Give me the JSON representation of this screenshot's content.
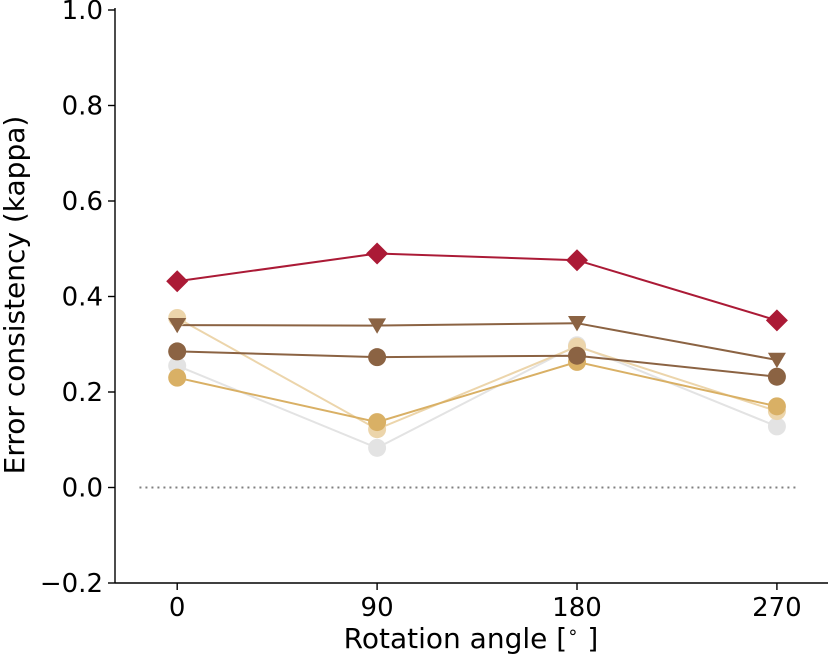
{
  "chart_data": {
    "type": "line",
    "title": "",
    "xlabel": "Rotation angle [$^\\circ$]",
    "xlabel_text": "Rotation angle [",
    "xlabel_unit": "∘",
    "xlabel_close": "]",
    "ylabel": "Error consistency (kappa)",
    "x": [
      0,
      90,
      180,
      270
    ],
    "x_tick_labels": [
      "0",
      "90",
      "180",
      "270"
    ],
    "xlim": [
      -28,
      293
    ],
    "ylim": [
      -0.2,
      1.0
    ],
    "y_ticks": [
      -0.2,
      0.0,
      0.2,
      0.4,
      0.6,
      0.8,
      1.0
    ],
    "y_tick_labels": [
      "−0.2",
      "0.0",
      "0.2",
      "0.4",
      "0.6",
      "0.8",
      "1.0"
    ],
    "reference_line": {
      "y": 0.0,
      "style": "dotted",
      "color": "#808080"
    },
    "grid": false,
    "series": [
      {
        "name": "series-light-gray",
        "color": "#e3e3e3",
        "marker": "circle",
        "values": [
          0.255,
          0.083,
          0.298,
          0.128
        ]
      },
      {
        "name": "series-pale-tan",
        "color": "#ecd5ab",
        "marker": "circle",
        "values": [
          0.355,
          0.122,
          0.295,
          0.16
        ]
      },
      {
        "name": "series-gold",
        "color": "#d9b065",
        "marker": "circle",
        "values": [
          0.23,
          0.137,
          0.263,
          0.17
        ]
      },
      {
        "name": "series-dark-brown-circle",
        "color": "#8b6343",
        "marker": "circle",
        "values": [
          0.285,
          0.273,
          0.276,
          0.232
        ]
      },
      {
        "name": "series-brown-triangle",
        "color": "#8b6343",
        "marker": "triangle-down",
        "values": [
          0.34,
          0.339,
          0.344,
          0.267
        ]
      },
      {
        "name": "series-crimson-diamond",
        "color": "#ab1a36",
        "marker": "diamond",
        "values": [
          0.432,
          0.49,
          0.476,
          0.35
        ]
      }
    ]
  }
}
